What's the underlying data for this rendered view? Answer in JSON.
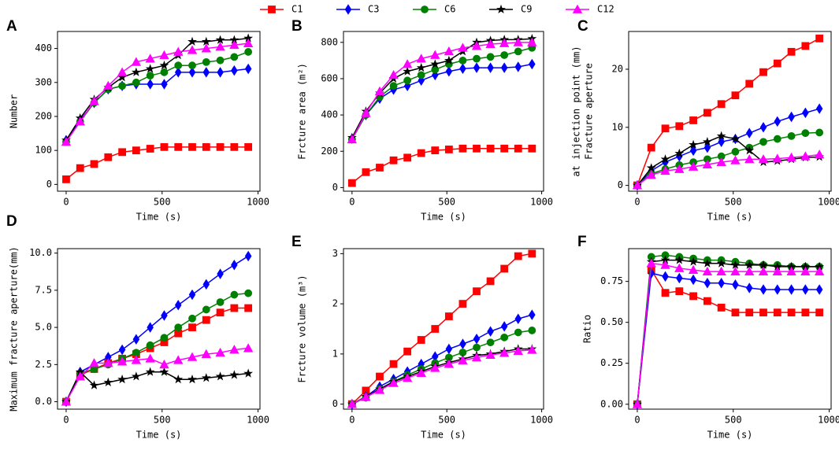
{
  "chart_data": [
    {
      "label": "A",
      "type": "line",
      "y_label": [
        "Number"
      ],
      "x_label": "Time (s)",
      "x": [
        0,
        73,
        146,
        219,
        292,
        365,
        438,
        511,
        584,
        657,
        730,
        803,
        876,
        949
      ],
      "xlim": [
        -45,
        1010
      ],
      "xticks": [
        0,
        500,
        1000
      ],
      "ylim": [
        -20,
        450
      ],
      "yticks": [
        0,
        100,
        200,
        300,
        400
      ],
      "series": [
        {
          "name": "C1",
          "color": "#ff0000",
          "marker": "square",
          "values": [
            15,
            48,
            60,
            80,
            95,
            100,
            105,
            110,
            110,
            110,
            110,
            110,
            110,
            110
          ]
        },
        {
          "name": "C3",
          "color": "#0000ff",
          "marker": "diamond",
          "values": [
            130,
            190,
            240,
            280,
            290,
            295,
            295,
            295,
            330,
            330,
            330,
            330,
            335,
            340
          ]
        },
        {
          "name": "C6",
          "color": "#008000",
          "marker": "circle",
          "values": [
            125,
            185,
            240,
            280,
            290,
            300,
            320,
            330,
            350,
            350,
            360,
            365,
            375,
            390
          ]
        },
        {
          "name": "C9",
          "color": "#000000",
          "marker": "star",
          "values": [
            130,
            195,
            250,
            285,
            315,
            330,
            340,
            350,
            380,
            420,
            420,
            425,
            425,
            430
          ]
        },
        {
          "name": "C12",
          "color": "#ff00ff",
          "marker": "triangle",
          "values": [
            125,
            185,
            245,
            290,
            330,
            360,
            370,
            380,
            390,
            395,
            400,
            405,
            410,
            415
          ]
        }
      ]
    },
    {
      "label": "B",
      "type": "line",
      "y_label": [
        "Frcture area (m²)"
      ],
      "x_label": "Time (s)",
      "x": [
        0,
        73,
        146,
        219,
        292,
        365,
        438,
        511,
        584,
        657,
        730,
        803,
        876,
        949
      ],
      "xlim": [
        -45,
        1010
      ],
      "xticks": [
        0,
        500,
        1000
      ],
      "ylim": [
        -20,
        860
      ],
      "yticks": [
        0,
        200,
        400,
        600,
        800
      ],
      "series": [
        {
          "color": "#ff0000",
          "marker": "square",
          "values": [
            25,
            85,
            110,
            150,
            165,
            190,
            205,
            210,
            215,
            215,
            215,
            215,
            215,
            215
          ]
        },
        {
          "color": "#0000ff",
          "marker": "diamond",
          "values": [
            270,
            400,
            490,
            540,
            560,
            590,
            620,
            640,
            655,
            660,
            660,
            660,
            665,
            680
          ]
        },
        {
          "color": "#008000",
          "marker": "circle",
          "values": [
            265,
            400,
            500,
            560,
            590,
            620,
            650,
            680,
            700,
            710,
            720,
            730,
            750,
            770
          ]
        },
        {
          "color": "#000000",
          "marker": "star",
          "values": [
            275,
            420,
            520,
            600,
            640,
            660,
            680,
            700,
            750,
            800,
            810,
            815,
            815,
            820
          ]
        },
        {
          "color": "#ff00ff",
          "marker": "triangle",
          "values": [
            265,
            410,
            530,
            620,
            680,
            710,
            730,
            750,
            770,
            780,
            790,
            795,
            800,
            800
          ]
        }
      ]
    },
    {
      "label": "C",
      "type": "line",
      "y_label": [
        "Fracture aperture",
        "at injection point (mm)"
      ],
      "x_label": "Time (s)",
      "x": [
        0,
        73,
        146,
        219,
        292,
        365,
        438,
        511,
        584,
        657,
        730,
        803,
        876,
        949
      ],
      "xlim": [
        -45,
        1010
      ],
      "xticks": [
        0,
        500,
        1000
      ],
      "ylim": [
        -1,
        26.5
      ],
      "yticks": [
        0,
        10,
        20
      ],
      "series": [
        {
          "color": "#ff0000",
          "marker": "square",
          "values": [
            0,
            6.5,
            9.8,
            10.2,
            11.2,
            12.5,
            14,
            15.5,
            17.5,
            19.5,
            21,
            23,
            24,
            25.3
          ]
        },
        {
          "color": "#0000ff",
          "marker": "diamond",
          "values": [
            0,
            2.5,
            4,
            5,
            6,
            6.5,
            7.5,
            8,
            9,
            10,
            11,
            11.8,
            12.5,
            13.2
          ]
        },
        {
          "color": "#008000",
          "marker": "circle",
          "values": [
            0,
            2,
            2.8,
            3.5,
            4,
            4.5,
            5,
            5.8,
            6.5,
            7.5,
            8,
            8.5,
            9,
            9.1
          ]
        },
        {
          "color": "#000000",
          "marker": "star",
          "values": [
            0,
            3,
            4.5,
            5.5,
            7,
            7.5,
            8.5,
            8,
            6,
            4,
            4.2,
            4.5,
            4.8,
            4.9
          ]
        },
        {
          "color": "#ff00ff",
          "marker": "triangle",
          "values": [
            0,
            1.8,
            2.5,
            2.8,
            3.2,
            3.6,
            4,
            4.3,
            4.5,
            4.5,
            4.6,
            4.8,
            5,
            5.3
          ]
        }
      ]
    },
    {
      "label": "D",
      "type": "line",
      "y_label": [
        "Maximum fracture aperture(mm)"
      ],
      "x_label": "Time (s)",
      "x": [
        0,
        73,
        146,
        219,
        292,
        365,
        438,
        511,
        584,
        657,
        730,
        803,
        876,
        949
      ],
      "xlim": [
        -45,
        1010
      ],
      "xticks": [
        0,
        500,
        1000
      ],
      "ylim": [
        -0.5,
        10.3
      ],
      "yticks": [
        {
          "value": 0,
          "label": "0.0"
        },
        2.5,
        {
          "value": 5,
          "label": "5.0"
        },
        7.5,
        {
          "value": 10,
          "label": "10.0"
        }
      ],
      "series": [
        {
          "color": "#ff0000",
          "marker": "square",
          "values": [
            0,
            1.8,
            2.2,
            2.6,
            2.9,
            3.2,
            3.6,
            4,
            4.6,
            5,
            5.5,
            6,
            6.3,
            6.3
          ]
        },
        {
          "color": "#0000ff",
          "marker": "diamond",
          "values": [
            0,
            2,
            2.5,
            3,
            3.5,
            4.2,
            5,
            5.8,
            6.5,
            7.2,
            7.9,
            8.6,
            9.2,
            9.8
          ]
        },
        {
          "color": "#008000",
          "marker": "circle",
          "values": [
            0,
            1.9,
            2.2,
            2.5,
            2.9,
            3.3,
            3.8,
            4.3,
            5,
            5.6,
            6.2,
            6.7,
            7.2,
            7.3
          ]
        },
        {
          "color": "#000000",
          "marker": "star",
          "values": [
            0,
            2,
            1.1,
            1.3,
            1.5,
            1.7,
            2,
            2,
            1.5,
            1.5,
            1.6,
            1.7,
            1.8,
            1.9
          ]
        },
        {
          "color": "#ff00ff",
          "marker": "triangle",
          "values": [
            0,
            1.7,
            2.6,
            2.6,
            2.7,
            2.8,
            2.9,
            2.5,
            2.8,
            3,
            3.2,
            3.3,
            3.5,
            3.6
          ]
        }
      ]
    },
    {
      "label": "E",
      "type": "line",
      "y_label": [
        "Frcture volume (m³)"
      ],
      "x_label": "Time (s)",
      "x": [
        0,
        73,
        146,
        219,
        292,
        365,
        438,
        511,
        584,
        657,
        730,
        803,
        876,
        949
      ],
      "xlim": [
        -45,
        1010
      ],
      "xticks": [
        0,
        500,
        1000
      ],
      "ylim": [
        -0.1,
        3.1
      ],
      "yticks": [
        0,
        1,
        2,
        3
      ],
      "series": [
        {
          "color": "#ff0000",
          "marker": "square",
          "values": [
            0,
            0.27,
            0.55,
            0.8,
            1.05,
            1.28,
            1.5,
            1.75,
            2,
            2.25,
            2.45,
            2.7,
            2.95,
            3.0
          ]
        },
        {
          "color": "#0000ff",
          "marker": "diamond",
          "values": [
            0,
            0.15,
            0.35,
            0.5,
            0.65,
            0.8,
            0.95,
            1.1,
            1.2,
            1.3,
            1.45,
            1.55,
            1.7,
            1.78
          ]
        },
        {
          "color": "#008000",
          "marker": "circle",
          "values": [
            0,
            0.13,
            0.3,
            0.45,
            0.58,
            0.7,
            0.82,
            0.93,
            1.03,
            1.13,
            1.23,
            1.33,
            1.43,
            1.47
          ]
        },
        {
          "color": "#000000",
          "marker": "star",
          "values": [
            0,
            0.15,
            0.3,
            0.45,
            0.55,
            0.65,
            0.75,
            0.83,
            0.9,
            0.97,
            1.0,
            1.05,
            1.1,
            1.1
          ]
        },
        {
          "color": "#ff00ff",
          "marker": "triangle",
          "values": [
            0,
            0.14,
            0.28,
            0.42,
            0.52,
            0.62,
            0.72,
            0.8,
            0.87,
            0.93,
            0.98,
            1.02,
            1.06,
            1.08
          ]
        }
      ]
    },
    {
      "label": "F",
      "type": "line",
      "y_label": [
        "Ratio"
      ],
      "x_label": "Time (s)",
      "x": [
        0,
        73,
        146,
        219,
        292,
        365,
        438,
        511,
        584,
        657,
        730,
        803,
        876,
        949
      ],
      "xlim": [
        -45,
        1010
      ],
      "xticks": [
        0,
        500,
        1000
      ],
      "ylim": [
        -0.03,
        0.95
      ],
      "yticks": [
        {
          "value": 0,
          "label": "0.00"
        },
        {
          "value": 0.25,
          "label": "0.25"
        },
        {
          "value": 0.5,
          "label": "0.50"
        },
        {
          "value": 0.75,
          "label": "0.75"
        }
      ],
      "series": [
        {
          "color": "#ff0000",
          "marker": "square",
          "values": [
            0,
            0.82,
            0.68,
            0.69,
            0.66,
            0.63,
            0.59,
            0.56,
            0.56,
            0.56,
            0.56,
            0.56,
            0.56,
            0.56
          ]
        },
        {
          "color": "#0000ff",
          "marker": "diamond",
          "values": [
            0,
            0.8,
            0.78,
            0.77,
            0.76,
            0.74,
            0.74,
            0.73,
            0.71,
            0.7,
            0.7,
            0.7,
            0.7,
            0.7
          ]
        },
        {
          "color": "#008000",
          "marker": "circle",
          "values": [
            0,
            0.9,
            0.91,
            0.9,
            0.89,
            0.88,
            0.88,
            0.87,
            0.86,
            0.85,
            0.85,
            0.84,
            0.84,
            0.84
          ]
        },
        {
          "color": "#000000",
          "marker": "star",
          "values": [
            0,
            0.87,
            0.88,
            0.88,
            0.87,
            0.86,
            0.86,
            0.85,
            0.85,
            0.85,
            0.84,
            0.84,
            0.84,
            0.84
          ]
        },
        {
          "color": "#ff00ff",
          "marker": "triangle",
          "values": [
            0,
            0.86,
            0.85,
            0.83,
            0.82,
            0.81,
            0.81,
            0.81,
            0.81,
            0.81,
            0.81,
            0.81,
            0.81,
            0.81
          ]
        }
      ]
    }
  ]
}
